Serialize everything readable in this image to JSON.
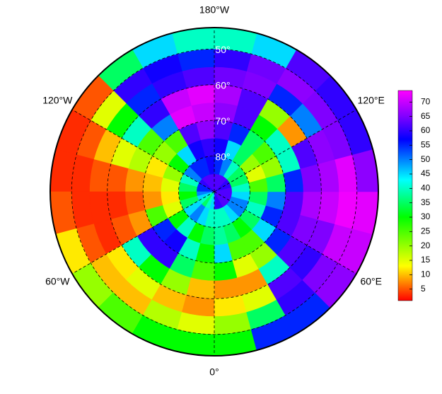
{
  "chart_data": {
    "type": "polar-heatmap",
    "lat_edges": [
      90,
      85,
      80,
      75,
      70,
      65,
      60,
      55,
      50,
      44
    ],
    "lon_edges": [
      0,
      15,
      30,
      45,
      60,
      75,
      90,
      105,
      120,
      135,
      150,
      165,
      180,
      195,
      210,
      225,
      240,
      255,
      270,
      285,
      300,
      315,
      330,
      345,
      360
    ],
    "values": [
      [
        60,
        40,
        38,
        45,
        30,
        8,
        12,
        20,
        30
      ],
      [
        60,
        40,
        35,
        25,
        15,
        8,
        15,
        35,
        55
      ],
      [
        62,
        45,
        30,
        25,
        20,
        40,
        62,
        60,
        55
      ],
      [
        62,
        50,
        35,
        45,
        55,
        62,
        60,
        65,
        66
      ],
      [
        62,
        50,
        40,
        55,
        62,
        65,
        65,
        70,
        70
      ],
      [
        62,
        45,
        35,
        50,
        62,
        68,
        70,
        73,
        72
      ],
      [
        62,
        40,
        25,
        35,
        55,
        65,
        68,
        72,
        66
      ],
      [
        60,
        35,
        15,
        20,
        40,
        62,
        66,
        65,
        60
      ],
      [
        60,
        35,
        20,
        25,
        40,
        8,
        50,
        65,
        60
      ],
      [
        62,
        40,
        35,
        35,
        30,
        20,
        55,
        66,
        62
      ],
      [
        62,
        50,
        45,
        55,
        62,
        62,
        65,
        64,
        45
      ],
      [
        62,
        55,
        58,
        62,
        66,
        68,
        64,
        60,
        40
      ],
      [
        62,
        58,
        60,
        66,
        70,
        72,
        62,
        55,
        40
      ],
      [
        62,
        55,
        58,
        62,
        72,
        70,
        60,
        58,
        45
      ],
      [
        62,
        55,
        45,
        25,
        50,
        60,
        55,
        60,
        35
      ],
      [
        60,
        50,
        30,
        20,
        25,
        40,
        30,
        15,
        5
      ],
      [
        55,
        40,
        20,
        12,
        18,
        15,
        10,
        5,
        3
      ],
      [
        55,
        35,
        15,
        10,
        8,
        5,
        5,
        3,
        3
      ],
      [
        50,
        30,
        12,
        8,
        5,
        3,
        3,
        3,
        5
      ],
      [
        45,
        35,
        15,
        25,
        8,
        5,
        3,
        5,
        12
      ],
      [
        40,
        45,
        30,
        55,
        60,
        40,
        12,
        10,
        20
      ],
      [
        35,
        50,
        40,
        58,
        60,
        30,
        15,
        10,
        25
      ],
      [
        40,
        45,
        30,
        40,
        35,
        20,
        10,
        18,
        30
      ],
      [
        45,
        40,
        35,
        30,
        25,
        10,
        8,
        15,
        30
      ]
    ],
    "lon_labels": [
      {
        "value": -180,
        "label": "180°W"
      },
      {
        "value": 120,
        "label": "120°E"
      },
      {
        "value": 60,
        "label": "60°E"
      },
      {
        "value": 0,
        "label": "0°"
      },
      {
        "value": -60,
        "label": "60°W"
      },
      {
        "value": -120,
        "label": "120°W"
      }
    ],
    "lat_labels": [
      {
        "value": 50,
        "label": "50°"
      },
      {
        "value": 60,
        "label": "60°"
      },
      {
        "value": 70,
        "label": "70°"
      },
      {
        "value": 80,
        "label": "80°"
      }
    ],
    "clim": [
      1,
      74
    ],
    "cticks": [
      5,
      10,
      15,
      20,
      25,
      30,
      35,
      40,
      45,
      50,
      55,
      60,
      65,
      70
    ],
    "colormap": [
      {
        "value": 1,
        "color": "#ff0000"
      },
      {
        "value": 13,
        "color": "#ffff00"
      },
      {
        "value": 30,
        "color": "#00ff00"
      },
      {
        "value": 43,
        "color": "#00ffff"
      },
      {
        "value": 57,
        "color": "#0000ff"
      },
      {
        "value": 65,
        "color": "#8000ff"
      },
      {
        "value": 74,
        "color": "#ff00ff"
      }
    ]
  }
}
